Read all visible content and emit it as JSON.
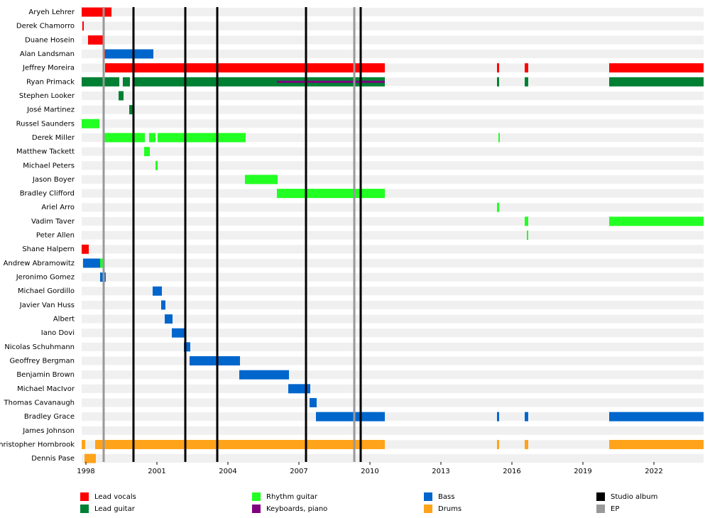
{
  "chart_data": {
    "type": "timeline",
    "categories": [
      "Aryeh Lehrer",
      "Derek Chamorro",
      "Duane Hosein",
      "Alan Landsman",
      "Jeffrey Moreira",
      "Ryan Primack",
      "Stephen Looker",
      "José Martinez",
      "Russel Saunders",
      "Derek Miller",
      "Matthew Tackett",
      "Michael Peters",
      "Jason Boyer",
      "Bradley Clifford",
      "Ariel Arro",
      "Vadim Taver",
      "Peter Allen",
      "Shane Halpern",
      "Andrew Abramowitz",
      "Jeronimo Gomez",
      "Michael Gordillo",
      "Javier Van Huss",
      "Albert",
      "Iano Dovi",
      "Nicolas Schuhmann",
      "Geoffrey Bergman",
      "Benjamin Brown",
      "Michael MacIvor",
      "Thomas Cavanaugh",
      "Bradley Grace",
      "James Johnson",
      "Christopher Hornbrook",
      "Dennis Pase"
    ],
    "xlim": [
      1997.82,
      2024.1
    ],
    "xticks": [
      1998,
      2001,
      2004,
      2007,
      2010,
      2013,
      2016,
      2019,
      2022
    ],
    "series": [
      {
        "name": "Lead vocals",
        "color": "#ff0000",
        "values": [
          [
            [
              1997.82,
              1999.08
            ]
          ],
          [
            [
              1997.85,
              1997.91
            ]
          ],
          [
            [
              1998.09,
              1998.75
            ]
          ],
          [
            [
              1998.72,
              1998.81
            ]
          ],
          [
            [
              1998.81,
              2010.63
            ],
            [
              2015.37,
              2015.46
            ],
            [
              2016.54,
              2016.69
            ],
            [
              2020.11,
              2024.1
            ]
          ],
          [],
          [],
          [],
          [],
          [],
          [],
          [],
          [],
          [],
          [],
          [],
          [],
          [
            [
              1997.82,
              1998.12
            ]
          ],
          [],
          [],
          [],
          [],
          [],
          [],
          [],
          [],
          [],
          [],
          [],
          [],
          [],
          [],
          []
        ]
      },
      {
        "name": "Lead guitar",
        "color": "#008033",
        "values": [
          [],
          [],
          [],
          [],
          [],
          [
            [
              1997.82,
              1999.41
            ],
            [
              1999.56,
              1999.86
            ],
            [
              2000.0,
              2010.63
            ],
            [
              2015.37,
              2015.46
            ],
            [
              2016.54,
              2016.69
            ],
            [
              2020.11,
              2024.1
            ]
          ],
          [
            [
              1999.38,
              1999.59
            ]
          ],
          [
            [
              1999.83,
              2000.01
            ]
          ],
          [],
          [],
          [],
          [],
          [],
          [],
          [],
          [],
          [],
          [],
          [],
          [],
          [],
          [],
          [],
          [],
          [],
          [],
          [],
          [],
          [],
          [],
          [],
          [],
          []
        ]
      },
      {
        "name": "Rhythm guitar",
        "color": "#22ff22",
        "values": [
          [],
          [],
          [],
          [],
          [],
          [],
          [],
          [],
          [
            [
              1997.82,
              1998.57
            ]
          ],
          [
            [
              1998.75,
              2000.49
            ],
            [
              2000.67,
              2000.94
            ],
            [
              2001.03,
              2004.75
            ],
            [
              2015.43,
              2015.49
            ]
          ],
          [
            [
              2000.46,
              2000.7
            ]
          ],
          [
            [
              2000.94,
              2001.03
            ]
          ],
          [
            [
              2004.72,
              2006.1
            ]
          ],
          [
            [
              2006.07,
              2010.63
            ]
          ],
          [
            [
              2015.37,
              2015.46
            ]
          ],
          [
            [
              2016.54,
              2016.69
            ],
            [
              2020.11,
              2024.1
            ]
          ],
          [
            [
              2016.63,
              2016.69
            ]
          ],
          [],
          [
            [
              1998.6,
              1998.75
            ]
          ],
          [],
          [],
          [],
          [],
          [],
          [],
          [],
          [],
          [],
          [],
          [],
          [],
          [],
          [],
          []
        ]
      },
      {
        "name": "Keyboards, piano",
        "color": "#800080",
        "values": [
          [],
          [],
          [],
          [],
          [],
          [
            [
              2006.07,
              2010.63
            ]
          ],
          [],
          [],
          [],
          [],
          [],
          [],
          [],
          [],
          [],
          [],
          [],
          [],
          [],
          [],
          [],
          [],
          [],
          [],
          [],
          [],
          [],
          [],
          [],
          [],
          [],
          [],
          []
        ]
      },
      {
        "name": "Bass",
        "color": "#0066cc",
        "values": [
          [],
          [],
          [],
          [
            [
              1998.81,
              2000.85
            ]
          ],
          [],
          [],
          [],
          [],
          [],
          [],
          [],
          [],
          [],
          [],
          [],
          [],
          [],
          [],
          [
            [
              1997.88,
              1998.6
            ]
          ],
          [
            [
              1998.6,
              1998.84
            ]
          ],
          [
            [
              2000.82,
              2001.21
            ]
          ],
          [
            [
              2001.18,
              2001.36
            ]
          ],
          [
            [
              2001.33,
              2001.66
            ]
          ],
          [
            [
              2001.63,
              2002.2
            ]
          ],
          [
            [
              2002.14,
              2002.41
            ]
          ],
          [
            [
              2002.38,
              2004.51
            ]
          ],
          [
            [
              2004.48,
              2006.58
            ]
          ],
          [
            [
              2006.55,
              2007.48
            ]
          ],
          [
            [
              2007.45,
              2007.75
            ]
          ],
          [
            [
              2007.72,
              2010.63
            ],
            [
              2015.37,
              2015.46
            ],
            [
              2016.54,
              2016.69
            ],
            [
              2020.11,
              2024.1
            ]
          ],
          [],
          [],
          []
        ]
      },
      {
        "name": "Drums",
        "color": "#ffa31a",
        "values": [
          [],
          [],
          [],
          [],
          [],
          [],
          [],
          [],
          [],
          [],
          [],
          [],
          [],
          [],
          [],
          [],
          [],
          [],
          [],
          [],
          [],
          [],
          [],
          [],
          [],
          [],
          [],
          [],
          [],
          [],
          [],
          [
            [
              1997.82,
              1997.97
            ],
            [
              1998.39,
              2010.63
            ],
            [
              2015.37,
              2015.46
            ],
            [
              2016.54,
              2016.69
            ],
            [
              2020.11,
              2024.1
            ]
          ],
          [
            [
              1997.94,
              1998.42
            ]
          ]
        ]
      }
    ],
    "events": [
      {
        "name": "Studio album",
        "color": "#000000",
        "values": [
          2000.01,
          2002.2,
          2003.55,
          2007.3,
          2009.61
        ]
      },
      {
        "name": "EP",
        "color": "#999999",
        "values": [
          1998.75,
          2009.34
        ]
      }
    ]
  }
}
